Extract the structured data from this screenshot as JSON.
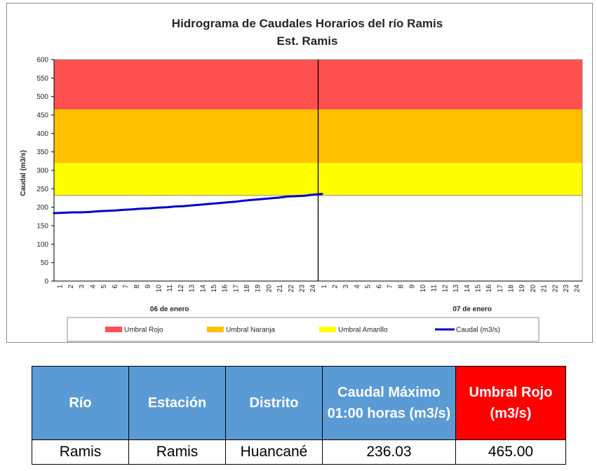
{
  "chart_data": {
    "type": "line",
    "title": "Hidrograma de Caudales Horarios del río Ramis",
    "subtitle": "Est. Ramis",
    "ylabel": "Caudal (m3/s)",
    "ylim": [
      0,
      600
    ],
    "yticks": [
      0,
      50,
      100,
      150,
      200,
      250,
      300,
      350,
      400,
      450,
      500,
      550,
      600
    ],
    "x_ticks": [
      "1",
      "2",
      "3",
      "4",
      "5",
      "6",
      "7",
      "8",
      "9",
      "10",
      "11",
      "12",
      "13",
      "14",
      "15",
      "16",
      "17",
      "18",
      "19",
      "20",
      "21",
      "22",
      "23",
      "24",
      "1",
      "2",
      "3",
      "4",
      "5",
      "6",
      "7",
      "8",
      "9",
      "10",
      "11",
      "12",
      "13",
      "14",
      "15",
      "16",
      "17",
      "18",
      "19",
      "20",
      "21",
      "22",
      "23",
      "24"
    ],
    "day_labels": [
      "06 de enero",
      "07  de enero"
    ],
    "current_hour_divider": "06 de enero 24:00",
    "thresholds": [
      {
        "name": "Umbral Rojo",
        "from": 465,
        "to": 600,
        "color": "#ff5050"
      },
      {
        "name": "Umbral Naranja",
        "from": 320,
        "to": 465,
        "color": "#ffc000"
      },
      {
        "name": "Umbral Amarillo",
        "from": 232,
        "to": 320,
        "color": "#ffff00"
      }
    ],
    "series": [
      {
        "name": "Caudal (m3/s)",
        "color": "#0000cc",
        "x_day": "06 de enero",
        "values": [
          184,
          185,
          186,
          186,
          187,
          189,
          190,
          191,
          193,
          194,
          196,
          197,
          199,
          200,
          202,
          203,
          205,
          207,
          209,
          211,
          213,
          215,
          218,
          220,
          222,
          224,
          226,
          229,
          230,
          231,
          234,
          236.03
        ]
      }
    ],
    "legend": [
      "Umbral Rojo",
      "Umbral Naranja",
      "Umbral Amarillo",
      "Caudal (m3/s)"
    ],
    "legend_position": "bottom",
    "grid": false
  },
  "table": {
    "headers": [
      "Río",
      "Estación",
      "Distrito",
      "Caudal Máximo 01:00 horas (m3/s)",
      "Umbral Rojo (m3/s)"
    ],
    "row": [
      "Ramis",
      "Ramis",
      "Huancané",
      "236.03",
      "465.00"
    ],
    "header_color": "#5b9bd5",
    "highlight_color": "#ff0000"
  }
}
